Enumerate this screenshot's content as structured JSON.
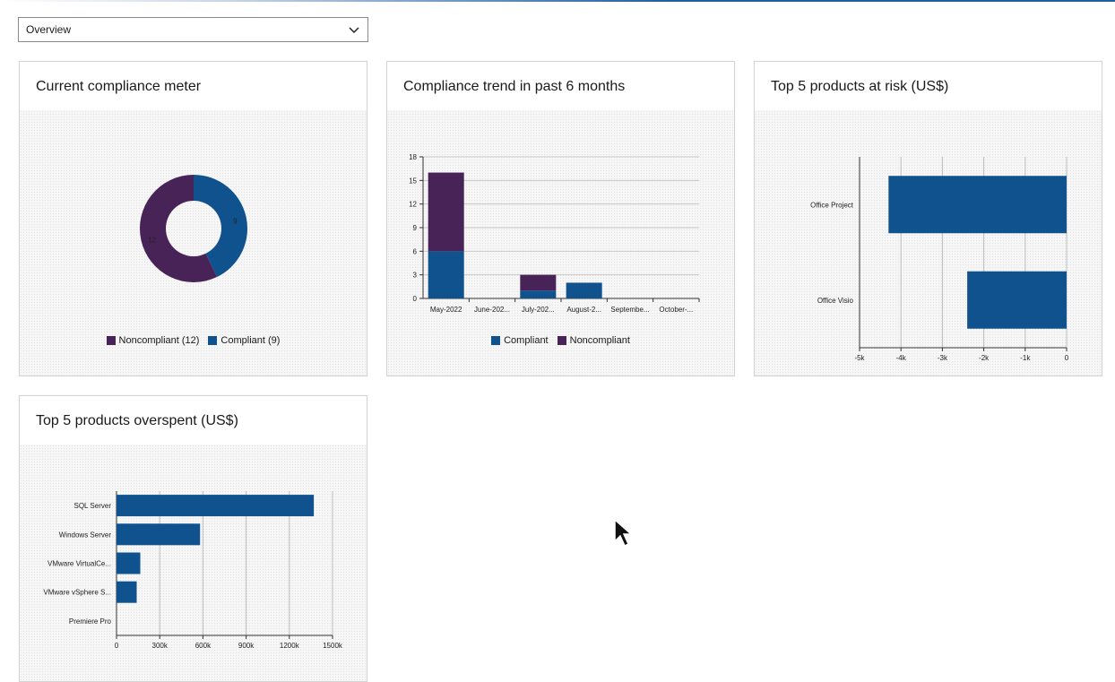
{
  "view_select": {
    "value": "Overview",
    "icon": "chevron-down-icon"
  },
  "colors": {
    "compliant": "#0f528e",
    "noncompliant": "#472357",
    "accent": "#1f5fa0"
  },
  "cards": {
    "meter": {
      "title": "Current compliance meter"
    },
    "trend": {
      "title": "Compliance trend in past 6 months"
    },
    "risk": {
      "title": "Top 5 products at risk (US$)"
    },
    "overspent": {
      "title": "Top 5 products overspent (US$)"
    }
  },
  "chart_data": [
    {
      "type": "pie",
      "style": "donut",
      "slices": [
        {
          "label": "Noncompliant",
          "value": 12,
          "color": "#472357"
        },
        {
          "label": "Compliant",
          "value": 9,
          "color": "#0f528e"
        }
      ],
      "data_labels": [
        "12",
        "9"
      ],
      "legend": [
        "Noncompliant (12)",
        "Compliant (9)"
      ],
      "legend_placement": "bottom"
    },
    {
      "type": "bar",
      "stacked": true,
      "categories": [
        "May-2022",
        "June-202...",
        "July-202...",
        "August-2...",
        "Septembe...",
        "October-..."
      ],
      "series": [
        {
          "name": "Compliant",
          "values": [
            6,
            0,
            1,
            2,
            0,
            0
          ],
          "color": "#0f528e"
        },
        {
          "name": "Noncompliant",
          "values": [
            10,
            0,
            2,
            0,
            0,
            0
          ],
          "color": "#472357"
        }
      ],
      "ylim": [
        0,
        18
      ],
      "yticks": [
        "0",
        "3",
        "6",
        "9",
        "12",
        "15",
        "18"
      ],
      "grid": true,
      "legend_placement": "bottom"
    },
    {
      "type": "bar",
      "orientation": "horizontal",
      "categories": [
        "Office Project",
        "Office Visio"
      ],
      "values": [
        -4300,
        -2400
      ],
      "xlim": [
        -5000,
        0
      ],
      "xticks": [
        "-5k",
        "-4k",
        "-3k",
        "-2k",
        "-1k",
        "0"
      ],
      "grid": true
    },
    {
      "type": "bar",
      "orientation": "horizontal",
      "categories": [
        "SQL Server",
        "Windows Server",
        "VMware VirtualCe...",
        "VMware vSphere S...",
        "Premiere Pro"
      ],
      "values": [
        1370000,
        580000,
        165000,
        140000,
        0
      ],
      "xlim": [
        0,
        1500000
      ],
      "xticks": [
        "0",
        "300k",
        "600k",
        "900k",
        "1200k",
        "1500k"
      ],
      "grid": true
    }
  ]
}
